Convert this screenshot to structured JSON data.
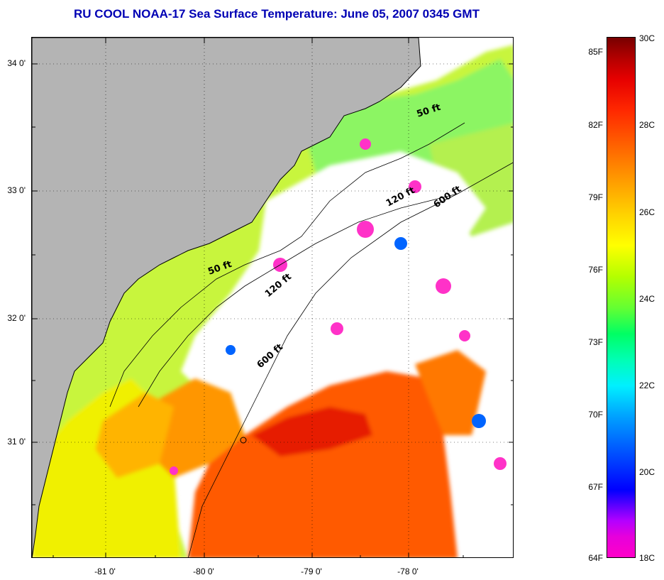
{
  "title": "RU COOL  NOAA-17  Sea Surface Temperature:  June 05, 2007 0345 GMT",
  "map": {
    "latitude_labels": [
      "34 0'",
      "33 0'",
      "32 0'",
      "31 0'"
    ],
    "longitude_labels": [
      "-81 0'",
      "-80 0'",
      "-79 0'",
      "-78 0'"
    ],
    "contour_labels": {
      "upper_50": "50 ft",
      "upper_120": "120 ft",
      "upper_600": "600 ft",
      "lower_50": "50 ft",
      "lower_120": "120 ft",
      "lower_600": "600 ft"
    },
    "colors": {
      "land": "#b4b4b4",
      "cloud": "#ffffff",
      "warm_core": "#ff5a00",
      "shelf": "#d2ff32",
      "cool": "#00c8ff",
      "cold": "#ff32c8"
    }
  },
  "colorbar": {
    "fahrenheit_labels": [
      "85F",
      "82F",
      "79F",
      "76F",
      "73F",
      "70F",
      "67F",
      "64F"
    ],
    "celsius_labels": [
      "30C",
      "28C",
      "26C",
      "24C",
      "22C",
      "20C",
      "18C"
    ]
  }
}
